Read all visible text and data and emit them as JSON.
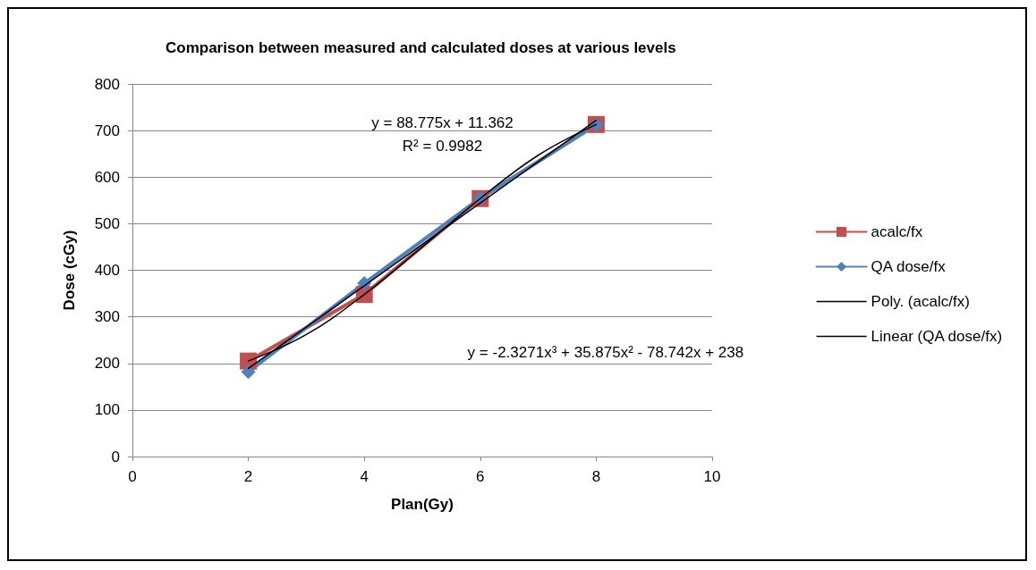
{
  "chart_data": {
    "type": "line",
    "title": "Comparison between measured and calculated doses at various levels",
    "xlabel": "Plan(Gy)",
    "ylabel": "Dose (cGy)",
    "series": [
      {
        "name": "acalc/fx",
        "color": "#c0504d",
        "marker": "square",
        "x": [
          2,
          4,
          6,
          8
        ],
        "values": [
          205,
          348,
          554,
          713
        ]
      },
      {
        "name": "QA dose/fx",
        "color": "#4f81bd",
        "marker": "diamond",
        "x": [
          2,
          4,
          6,
          8
        ],
        "values": [
          182,
          372,
          555,
          712
        ]
      },
      {
        "name": "Poly. (acalc/fx)",
        "color": "#000000",
        "marker": "none",
        "x": [
          2,
          3,
          4,
          5,
          6,
          7,
          8
        ],
        "values": [
          205,
          262,
          348,
          450,
          554,
          647,
          713
        ]
      },
      {
        "name": "Linear (QA dose/fx)",
        "color": "#000000",
        "marker": "none",
        "x": [
          2,
          8
        ],
        "values": [
          189,
          722
        ]
      }
    ],
    "xlim": [
      0,
      10
    ],
    "xticks": [
      0,
      2,
      4,
      6,
      8,
      10
    ],
    "ylim": [
      0,
      800
    ],
    "yticks": [
      0,
      100,
      200,
      300,
      400,
      500,
      600,
      700,
      800
    ],
    "grid": "y",
    "legend": "right",
    "annotations": [
      "y = 88.775x + 11.362",
      "R² = 0.9982",
      "y = -2.3271x³ + 35.875x² - 78.742x + 238"
    ]
  }
}
